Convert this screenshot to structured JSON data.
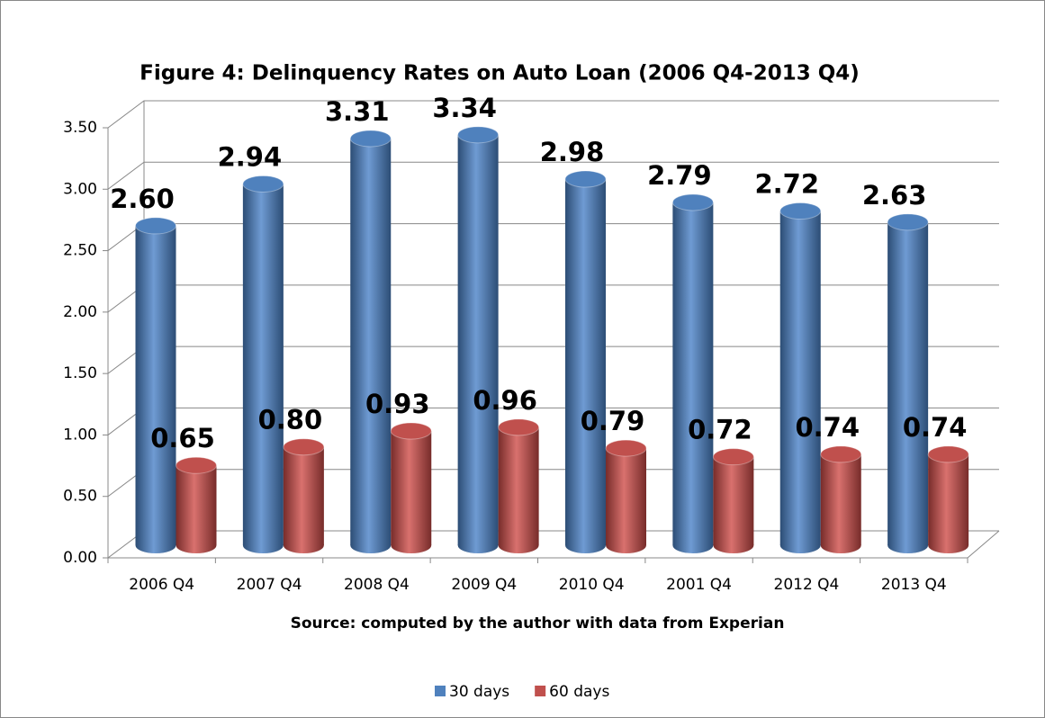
{
  "chart_data": {
    "type": "bar3d",
    "title": "Figure 4:  Delinquency Rates on Auto Loan (2006 Q4-2013 Q4)",
    "x_label": "Source: computed by the author with data from Experian",
    "categories": [
      "2006 Q4",
      "2007 Q4",
      "2008 Q4",
      "2009 Q4",
      "2010 Q4",
      "2001 Q4",
      "2012 Q4",
      "2013 Q4"
    ],
    "series": [
      {
        "name": "30 days",
        "color": "#4f81bd",
        "values": [
          2.6,
          2.94,
          3.31,
          3.34,
          2.98,
          2.79,
          2.72,
          2.63
        ],
        "value_labels": [
          "2.60",
          "2.94",
          "3.31",
          "3.34",
          "2.98",
          "2.79",
          "2.72",
          "2.63"
        ]
      },
      {
        "name": "60 days",
        "color": "#c0504d",
        "values": [
          0.65,
          0.8,
          0.93,
          0.96,
          0.79,
          0.72,
          0.74,
          0.74
        ],
        "value_labels": [
          "0.65",
          "0.80",
          "0.93",
          "0.96",
          "0.79",
          "0.72",
          "0.74",
          "0.74"
        ]
      }
    ],
    "ylim": [
      0,
      3.5
    ],
    "yticks": [
      {
        "value": 0,
        "label": "0.00"
      },
      {
        "value": 0.5,
        "label": "0.50"
      },
      {
        "value": 1,
        "label": "1.00"
      },
      {
        "value": 1.5,
        "label": "1.50"
      },
      {
        "value": 2,
        "label": "2.00"
      },
      {
        "value": 2.5,
        "label": "2.50"
      },
      {
        "value": 3,
        "label": "3.00"
      },
      {
        "value": 3.5,
        "label": "3.50"
      }
    ],
    "grid": true,
    "legend": "bottom"
  }
}
